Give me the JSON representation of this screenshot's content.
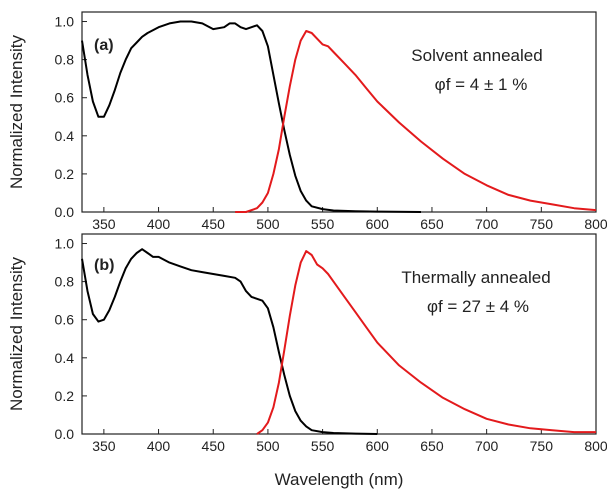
{
  "chart_data": [
    {
      "type": "line",
      "panel_label": "(a)",
      "ylabel": "Normalized Intensity",
      "xlabel": "",
      "xlim": [
        330,
        800
      ],
      "ylim": [
        0.0,
        1.05
      ],
      "x_ticks": [
        "350",
        "400",
        "450",
        "500",
        "550",
        "600",
        "650",
        "700",
        "750",
        "800"
      ],
      "y_ticks": [
        "0.0",
        "0.2",
        "0.4",
        "0.6",
        "0.8",
        "1.0"
      ],
      "annotation": [
        "Solvent annealed",
        "φf = 4 ± 1 %"
      ],
      "series": [
        {
          "color": "#000000",
          "x": [
            330,
            335,
            340,
            345,
            350,
            355,
            360,
            365,
            370,
            375,
            380,
            385,
            390,
            400,
            410,
            420,
            430,
            440,
            450,
            460,
            465,
            470,
            475,
            480,
            485,
            490,
            495,
            500,
            505,
            510,
            515,
            520,
            525,
            530,
            535,
            540,
            550,
            560,
            580,
            600,
            640
          ],
          "y": [
            0.9,
            0.72,
            0.58,
            0.5,
            0.5,
            0.56,
            0.64,
            0.73,
            0.8,
            0.86,
            0.89,
            0.92,
            0.94,
            0.97,
            0.99,
            1.0,
            1.0,
            0.99,
            0.96,
            0.97,
            0.99,
            0.99,
            0.97,
            0.96,
            0.97,
            0.98,
            0.95,
            0.87,
            0.72,
            0.57,
            0.43,
            0.3,
            0.19,
            0.11,
            0.06,
            0.03,
            0.015,
            0.008,
            0.004,
            0.002,
            0.0
          ]
        },
        {
          "color": "#e31a1c",
          "x": [
            470,
            480,
            490,
            495,
            500,
            505,
            510,
            515,
            520,
            525,
            530,
            535,
            540,
            545,
            550,
            555,
            560,
            570,
            580,
            590,
            600,
            620,
            640,
            660,
            680,
            700,
            720,
            740,
            760,
            780,
            800
          ],
          "y": [
            0.0,
            0.0,
            0.02,
            0.05,
            0.1,
            0.2,
            0.33,
            0.5,
            0.66,
            0.8,
            0.9,
            0.95,
            0.94,
            0.91,
            0.88,
            0.87,
            0.84,
            0.78,
            0.72,
            0.65,
            0.58,
            0.47,
            0.37,
            0.28,
            0.2,
            0.14,
            0.09,
            0.06,
            0.04,
            0.02,
            0.01
          ]
        }
      ]
    },
    {
      "type": "line",
      "panel_label": "(b)",
      "ylabel": "Normalized Intensity",
      "xlabel": "Wavelength (nm)",
      "xlim": [
        330,
        800
      ],
      "ylim": [
        0.0,
        1.05
      ],
      "x_ticks": [
        "350",
        "400",
        "450",
        "500",
        "550",
        "600",
        "650",
        "700",
        "750",
        "800"
      ],
      "y_ticks": [
        "0.0",
        "0.2",
        "0.4",
        "0.6",
        "0.8",
        "1.0"
      ],
      "annotation": [
        "Thermally annealed",
        "φf = 27 ± 4 %"
      ],
      "series": [
        {
          "color": "#000000",
          "x": [
            330,
            335,
            340,
            345,
            350,
            355,
            360,
            365,
            370,
            375,
            380,
            385,
            390,
            395,
            400,
            410,
            420,
            430,
            440,
            450,
            460,
            470,
            475,
            480,
            485,
            490,
            495,
            500,
            505,
            510,
            515,
            520,
            525,
            530,
            535,
            540,
            550,
            560,
            580,
            600
          ],
          "y": [
            0.92,
            0.75,
            0.63,
            0.59,
            0.6,
            0.65,
            0.72,
            0.8,
            0.87,
            0.92,
            0.95,
            0.97,
            0.95,
            0.93,
            0.93,
            0.9,
            0.88,
            0.86,
            0.85,
            0.84,
            0.83,
            0.82,
            0.8,
            0.75,
            0.72,
            0.71,
            0.7,
            0.66,
            0.56,
            0.43,
            0.31,
            0.2,
            0.12,
            0.07,
            0.04,
            0.02,
            0.01,
            0.005,
            0.002,
            0.0
          ]
        },
        {
          "color": "#e31a1c",
          "x": [
            490,
            495,
            500,
            505,
            510,
            515,
            520,
            525,
            530,
            535,
            540,
            545,
            550,
            555,
            560,
            570,
            580,
            590,
            600,
            620,
            640,
            660,
            680,
            700,
            720,
            740,
            760,
            780,
            800
          ],
          "y": [
            0.0,
            0.02,
            0.06,
            0.14,
            0.27,
            0.44,
            0.62,
            0.78,
            0.9,
            0.96,
            0.94,
            0.89,
            0.87,
            0.84,
            0.8,
            0.72,
            0.64,
            0.56,
            0.48,
            0.36,
            0.27,
            0.19,
            0.13,
            0.08,
            0.05,
            0.03,
            0.02,
            0.01,
            0.01
          ]
        }
      ]
    }
  ]
}
